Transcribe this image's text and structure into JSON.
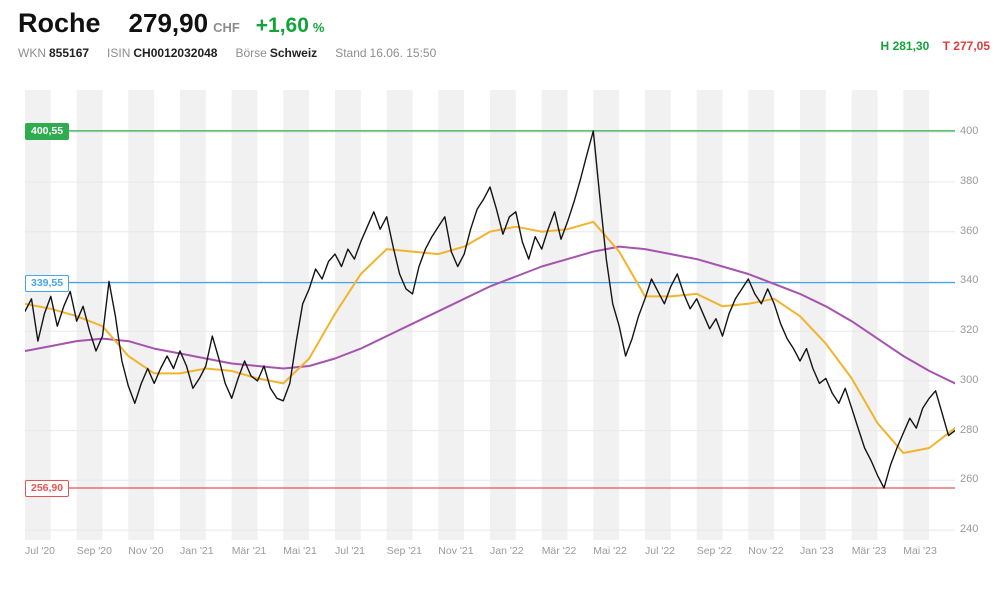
{
  "header": {
    "name": "Roche",
    "price": "279,90",
    "currency": "CHF",
    "change": "+1,60",
    "change_unit": "%",
    "meta": [
      {
        "label": "WKN",
        "value": "855167"
      },
      {
        "label": "ISIN",
        "value": "CH0012032048"
      },
      {
        "label": "Börse",
        "value": "Schweiz"
      },
      {
        "label": "Stand",
        "value": "16.06. 15:50"
      }
    ],
    "high_label": "H",
    "high_value": "281,30",
    "low_label": "T",
    "low_value": "277,05"
  },
  "colors": {
    "positive": "#12a43b",
    "negative": "#e03c3c",
    "price_line": "#141414",
    "ma_fast": "#f2b32d",
    "ma_slow": "#a653b0",
    "ref_high": "#2fac4f",
    "ref_mid": "#45a7e5",
    "ref_low": "#e25555",
    "grid": "#e8e8e8",
    "stripe": "#f1f1f1",
    "axis_text": "#9a9a9a"
  },
  "chart_data": {
    "type": "line",
    "title": "",
    "xlabel": "",
    "ylabel": "",
    "x_unit": "months since Jul 2020",
    "months_total": 36,
    "ylim": [
      236,
      417
    ],
    "y_ticks": [
      240,
      260,
      280,
      300,
      320,
      340,
      360,
      380,
      400
    ],
    "grid": true,
    "legend": "none",
    "x_ticks": [
      {
        "m": 0,
        "label": "Jul '20"
      },
      {
        "m": 2,
        "label": "Sep '20"
      },
      {
        "m": 4,
        "label": "Nov '20"
      },
      {
        "m": 6,
        "label": "Jan '21"
      },
      {
        "m": 8,
        "label": "Mär '21"
      },
      {
        "m": 10,
        "label": "Mai '21"
      },
      {
        "m": 12,
        "label": "Jul '21"
      },
      {
        "m": 14,
        "label": "Sep '21"
      },
      {
        "m": 16,
        "label": "Nov '21"
      },
      {
        "m": 18,
        "label": "Jan '22"
      },
      {
        "m": 20,
        "label": "Mär '22"
      },
      {
        "m": 22,
        "label": "Mai '22"
      },
      {
        "m": 24,
        "label": "Jul '22"
      },
      {
        "m": 26,
        "label": "Sep '22"
      },
      {
        "m": 28,
        "label": "Nov '22"
      },
      {
        "m": 30,
        "label": "Jan '23"
      },
      {
        "m": 32,
        "label": "Mär '23"
      },
      {
        "m": 34,
        "label": "Mai '23"
      }
    ],
    "reference_lines": [
      {
        "name": "period-high-line",
        "label": "400,55",
        "value": 400.55,
        "color": "#2fac4f",
        "style": "solid"
      },
      {
        "name": "mid-reference-line",
        "label": "339,55",
        "value": 339.55,
        "color": "#45a7e5",
        "style": "outline"
      },
      {
        "name": "period-low-line",
        "label": "256,90",
        "value": 256.9,
        "color": "#e25555",
        "style": "outline"
      }
    ],
    "series": [
      {
        "id": "ma-slow",
        "color": "#a653b0",
        "width": 2,
        "points_per_month": 1,
        "values": [
          312,
          314,
          316,
          317,
          316,
          313,
          311,
          309,
          307,
          306,
          305,
          306,
          309,
          313,
          318,
          323,
          328,
          333,
          338,
          342,
          346,
          349,
          352,
          354,
          353,
          351,
          349,
          346,
          343,
          339,
          335,
          330,
          324,
          317,
          310,
          304,
          299
        ]
      },
      {
        "id": "ma-fast",
        "color": "#f2b32d",
        "width": 2,
        "points_per_month": 1,
        "values": [
          331,
          329,
          326,
          322,
          310,
          303,
          303,
          305,
          304,
          301,
          299,
          309,
          327,
          343,
          353,
          352,
          351,
          354,
          360,
          362,
          360,
          361,
          364,
          352,
          334,
          334,
          335,
          330,
          331,
          333,
          326,
          315,
          301,
          283,
          271,
          273,
          281
        ]
      },
      {
        "id": "price",
        "color": "#141414",
        "width": 1.4,
        "points_per_month": 4,
        "values": [
          328,
          333,
          316,
          327,
          334,
          322,
          330,
          336,
          324,
          330,
          320,
          312,
          318,
          340,
          326,
          308,
          298,
          291,
          299,
          305,
          299,
          305,
          310,
          305,
          312,
          306,
          297,
          301,
          306,
          318,
          309,
          299,
          293,
          301,
          308,
          302,
          300,
          306,
          297,
          293,
          292,
          299,
          316,
          331,
          337,
          345,
          341,
          348,
          351,
          346,
          353,
          349,
          356,
          362,
          368,
          361,
          366,
          354,
          343,
          337,
          335,
          346,
          353,
          358,
          362,
          366,
          352,
          346,
          351,
          361,
          369,
          373,
          378,
          369,
          359,
          366,
          368,
          356,
          349,
          358,
          353,
          361,
          368,
          357,
          364,
          372,
          381,
          391,
          400.5,
          374,
          349,
          331,
          322,
          310,
          317,
          326,
          333,
          341,
          336,
          331,
          338,
          343,
          335,
          329,
          333,
          327,
          321,
          325,
          318,
          327,
          333,
          337,
          341,
          335,
          331,
          337,
          331,
          323,
          317,
          313,
          308,
          313,
          305,
          299,
          301,
          295,
          291,
          297,
          289,
          281,
          273,
          268,
          262,
          256.9,
          266,
          273,
          279,
          285,
          281,
          289,
          293,
          296,
          287,
          278,
          280
        ]
      }
    ]
  }
}
